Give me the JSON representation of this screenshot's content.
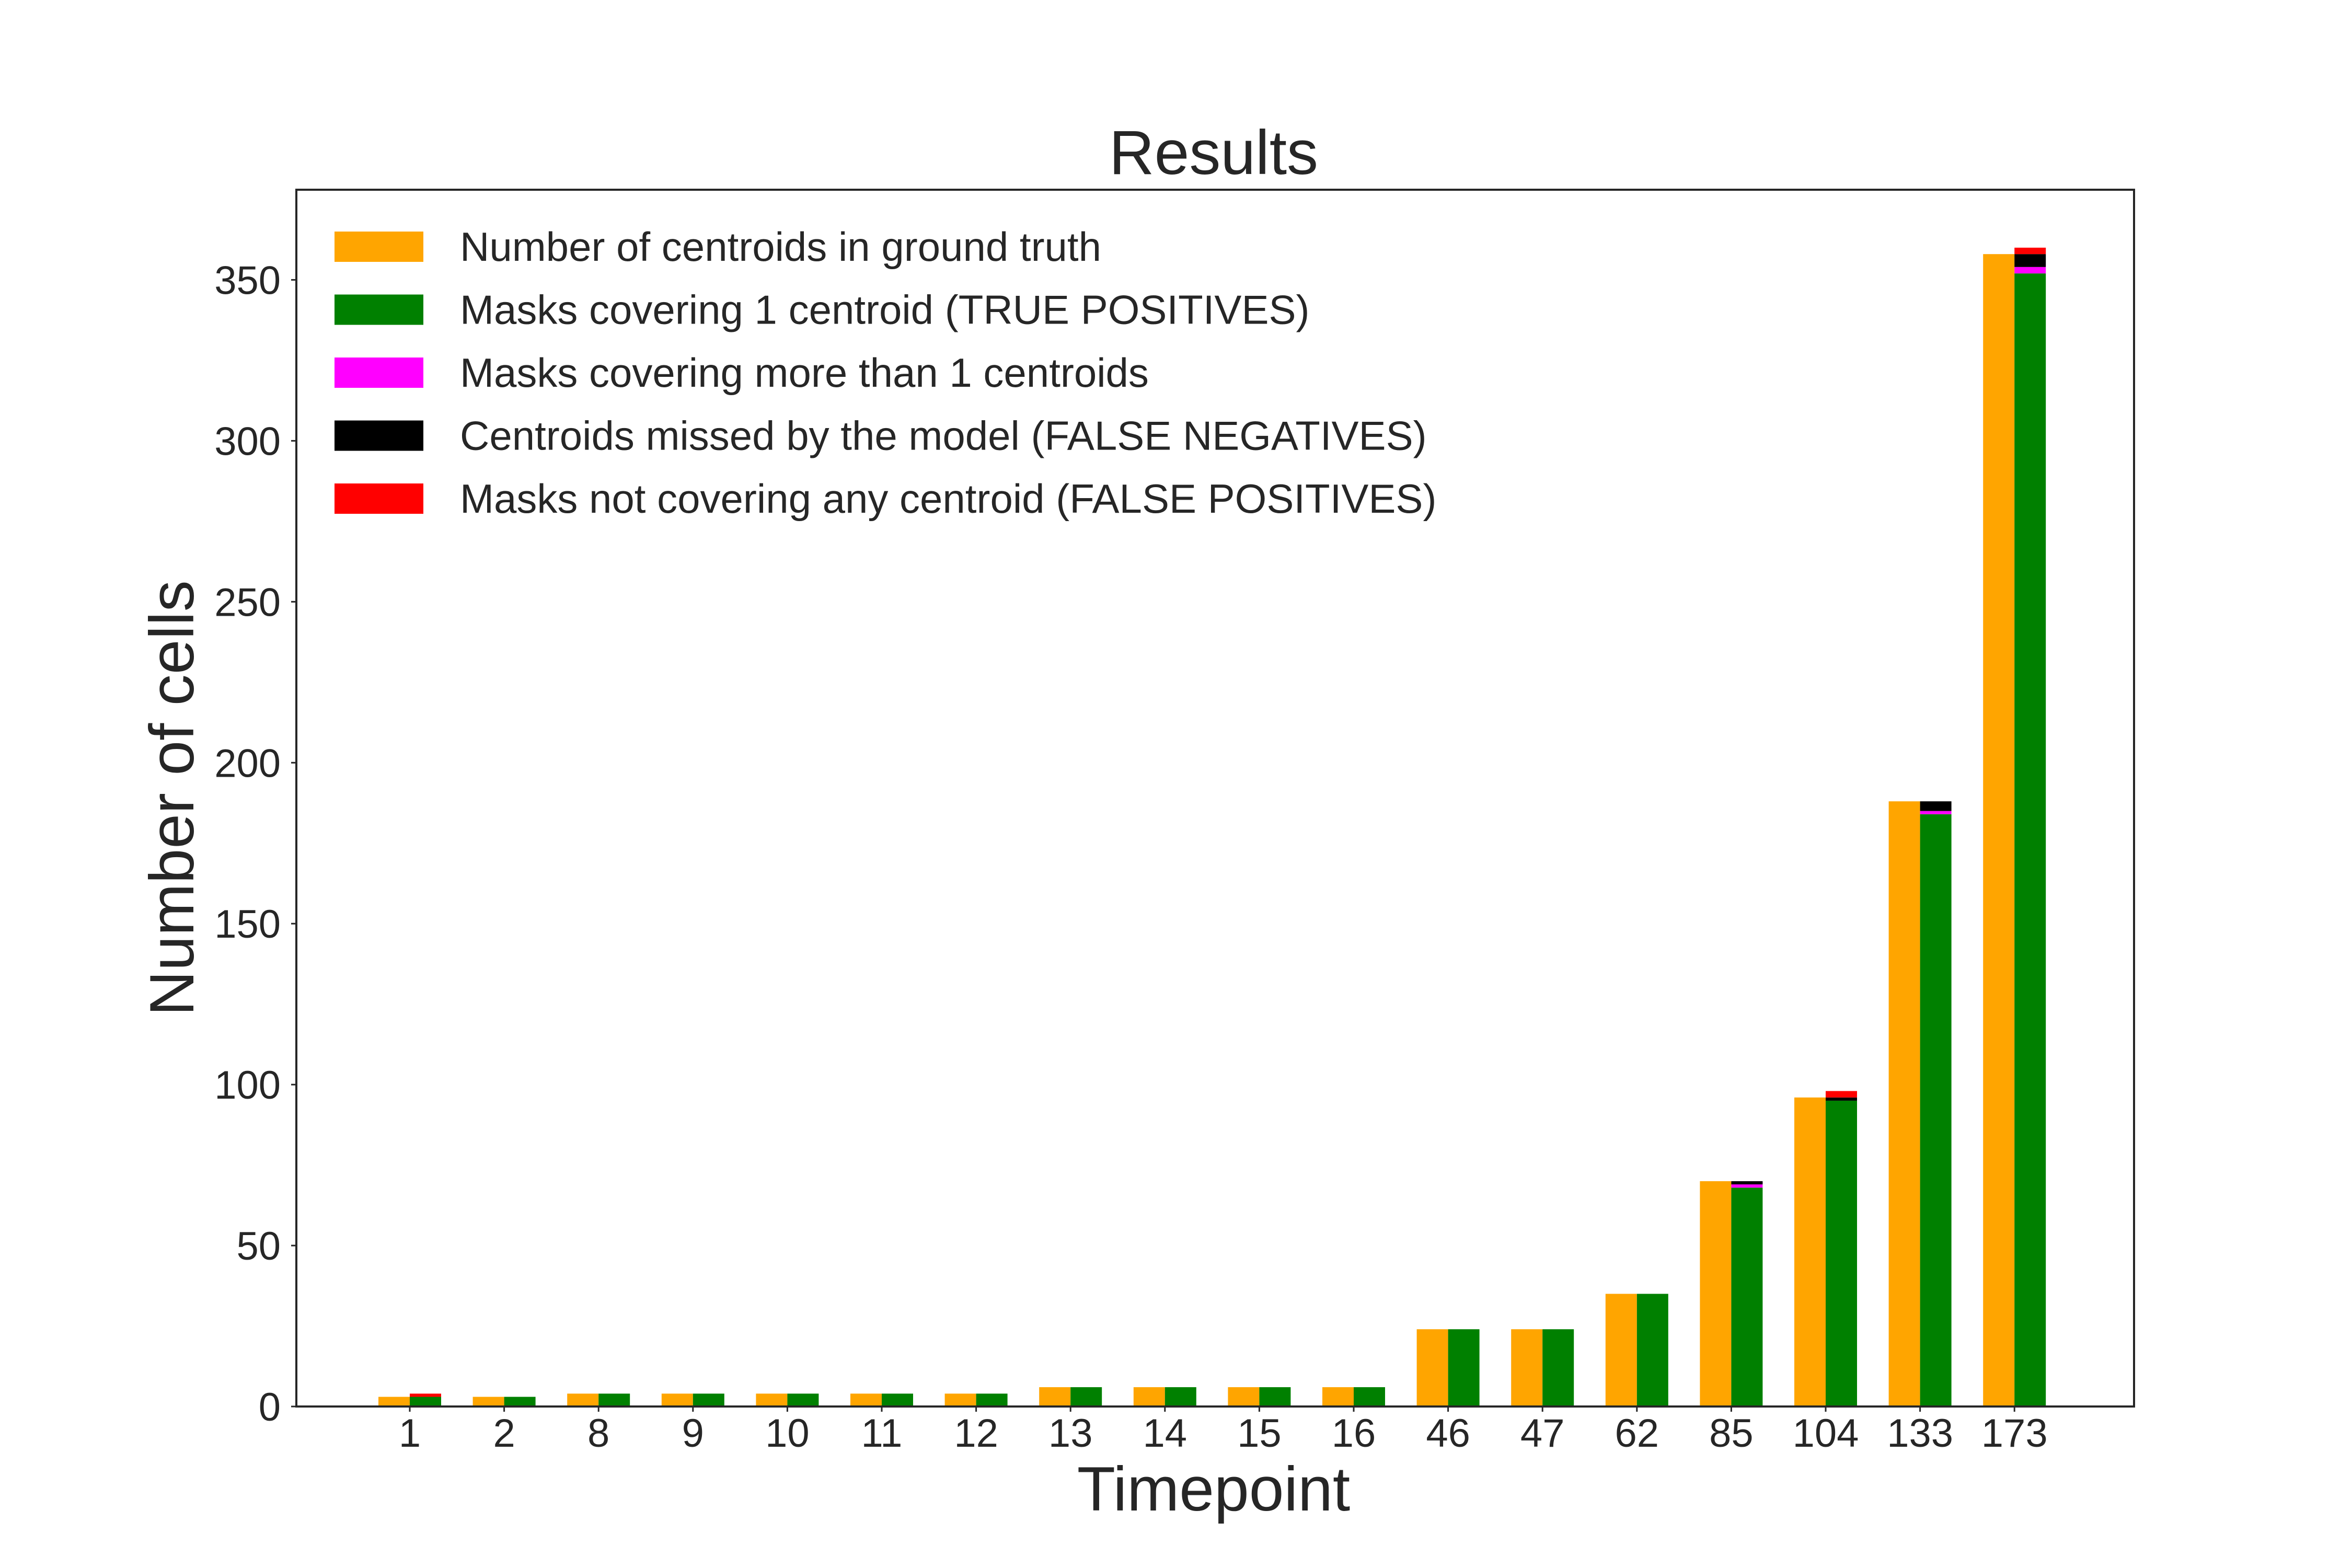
{
  "chart_data": {
    "type": "bar",
    "title": "Results",
    "xlabel": "Timepoint",
    "ylabel": "Number of cells",
    "ylim": [
      0,
      378
    ],
    "yticks": [
      0,
      50,
      100,
      150,
      200,
      250,
      300,
      350
    ],
    "grid": false,
    "legend_position": "top-left",
    "categories": [
      "1",
      "2",
      "8",
      "9",
      "10",
      "11",
      "12",
      "13",
      "14",
      "15",
      "16",
      "46",
      "47",
      "62",
      "85",
      "104",
      "133",
      "173"
    ],
    "ground_truth": {
      "name": "Number of centroids in ground truth",
      "color": "#FFA500",
      "values": [
        3,
        3,
        4,
        4,
        4,
        4,
        4,
        6,
        6,
        6,
        6,
        24,
        24,
        35,
        70,
        96,
        188,
        358
      ]
    },
    "stacked_series": [
      {
        "name": "Masks covering 1 centroid (TRUE POSITIVES)",
        "color": "#008000",
        "values": [
          3,
          3,
          4,
          4,
          4,
          4,
          4,
          6,
          6,
          6,
          6,
          24,
          24,
          35,
          68,
          95,
          184,
          352
        ]
      },
      {
        "name": "Masks covering more than 1 centroids",
        "color": "#FF00FF",
        "values": [
          0,
          0,
          0,
          0,
          0,
          0,
          0,
          0,
          0,
          0,
          0,
          0,
          0,
          0,
          1,
          0,
          1,
          2
        ]
      },
      {
        "name": "Centroids missed by the model (FALSE NEGATIVES)",
        "color": "#000000",
        "values": [
          0,
          0,
          0,
          0,
          0,
          0,
          0,
          0,
          0,
          0,
          0,
          0,
          0,
          0,
          1,
          1,
          3,
          4
        ]
      },
      {
        "name": "Masks not covering any centroid (FALSE POSITIVES)",
        "color": "#FF0000",
        "values": [
          1,
          0,
          0,
          0,
          0,
          0,
          0,
          0,
          0,
          0,
          0,
          0,
          0,
          0,
          0,
          2,
          0,
          2
        ]
      }
    ]
  }
}
